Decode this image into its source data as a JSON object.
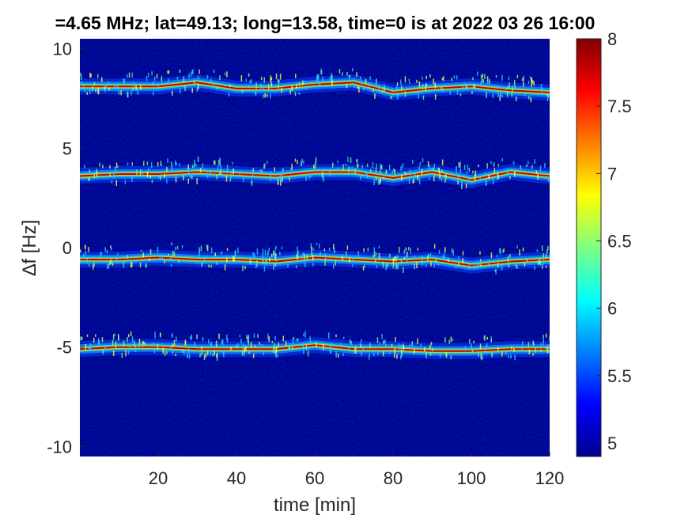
{
  "chart_data": {
    "type": "heatmap",
    "title": "=4.65 MHz;  lat=49.13; long=13.58, time=0 is at 2022 03 26 16:00",
    "xlabel": "time [min]",
    "ylabel": "∆f [Hz]",
    "xlim": [
      0,
      120
    ],
    "ylim": [
      -10.5,
      10.5
    ],
    "xticks": [
      "20",
      "40",
      "60",
      "80",
      "100",
      "120"
    ],
    "yticks": [
      "10",
      "5",
      "0",
      "-5",
      "-10"
    ],
    "colorbar": {
      "colormap": "jet",
      "range": [
        4.9,
        8
      ],
      "ticks": [
        "8",
        "7.5",
        "7",
        "6.5",
        "6",
        "5.5",
        "5"
      ]
    },
    "series": [
      {
        "values": [
          [
            0,
            8.1
          ],
          [
            10,
            8.1
          ],
          [
            20,
            8.1
          ],
          [
            30,
            8.3
          ],
          [
            40,
            8.0
          ],
          [
            50,
            8.0
          ],
          [
            60,
            8.2
          ],
          [
            70,
            8.3
          ],
          [
            80,
            7.8
          ],
          [
            90,
            8.0
          ],
          [
            100,
            8.1
          ],
          [
            110,
            7.9
          ],
          [
            120,
            7.8
          ]
        ]
      },
      {
        "values": [
          [
            0,
            3.6
          ],
          [
            10,
            3.7
          ],
          [
            20,
            3.7
          ],
          [
            30,
            3.8
          ],
          [
            40,
            3.7
          ],
          [
            50,
            3.6
          ],
          [
            60,
            3.8
          ],
          [
            70,
            3.8
          ],
          [
            80,
            3.5
          ],
          [
            90,
            3.8
          ],
          [
            100,
            3.4
          ],
          [
            110,
            3.8
          ],
          [
            120,
            3.6
          ]
        ]
      },
      {
        "values": [
          [
            0,
            -0.6
          ],
          [
            10,
            -0.6
          ],
          [
            20,
            -0.5
          ],
          [
            30,
            -0.6
          ],
          [
            40,
            -0.6
          ],
          [
            50,
            -0.7
          ],
          [
            60,
            -0.5
          ],
          [
            70,
            -0.6
          ],
          [
            80,
            -0.7
          ],
          [
            90,
            -0.6
          ],
          [
            100,
            -0.9
          ],
          [
            110,
            -0.7
          ],
          [
            120,
            -0.6
          ]
        ]
      },
      {
        "values": [
          [
            0,
            -5.1
          ],
          [
            10,
            -5.0
          ],
          [
            20,
            -5.0
          ],
          [
            30,
            -5.1
          ],
          [
            40,
            -5.1
          ],
          [
            50,
            -5.1
          ],
          [
            60,
            -4.9
          ],
          [
            70,
            -5.1
          ],
          [
            80,
            -5.1
          ],
          [
            90,
            -5.2
          ],
          [
            100,
            -5.2
          ],
          [
            110,
            -5.1
          ],
          [
            120,
            -5.1
          ]
        ]
      }
    ]
  }
}
